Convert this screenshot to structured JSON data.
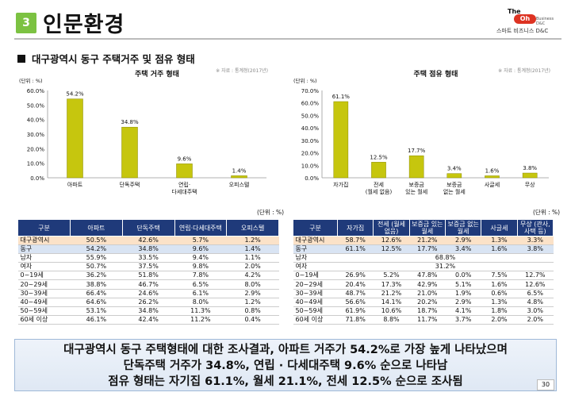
{
  "header": {
    "number": "3",
    "title": "인문환경"
  },
  "logo": {
    "line1": "The",
    "line2": "Oh",
    "line3": "Business D&C",
    "line4": "스마트 비즈니스 D&C"
  },
  "section_title": "대구광역시 동구 주택거주 및 점유 형태",
  "chart_data": [
    {
      "type": "bar",
      "title": "주택 거주 형태",
      "source": "※ 자료 : 통계청(2017년)",
      "unit_label": "(단위 : %)",
      "ylim": [
        0,
        60
      ],
      "yticks": [
        "0.0%",
        "10.0%",
        "20.0%",
        "30.0%",
        "40.0%",
        "50.0%",
        "60.0%"
      ],
      "categories": [
        "아파트",
        "단독주택",
        "연립·다세대주택",
        "오피스텔"
      ],
      "values": [
        54.2,
        34.8,
        9.6,
        1.4
      ],
      "value_labels": [
        "54.2%",
        "34.8%",
        "9.6%",
        "1.4%"
      ],
      "bar_color": "#c6c60e"
    },
    {
      "type": "bar",
      "title": "주택 점유 형태",
      "source": "※ 자료 : 통계청(2017년)",
      "unit_label": "(단위 : %)",
      "ylim": [
        0,
        70
      ],
      "yticks": [
        "0.0%",
        "10.0%",
        "20.0%",
        "30.0%",
        "40.0%",
        "50.0%",
        "60.0%",
        "70.0%"
      ],
      "categories": [
        "자가집",
        "전세 (월세 없음)",
        "보증금 있는 월세",
        "보증금 없는 월세",
        "사글세",
        "무상"
      ],
      "values": [
        61.1,
        12.5,
        17.7,
        3.4,
        1.6,
        3.8
      ],
      "value_labels": [
        "61.1%",
        "12.5%",
        "17.7%",
        "3.4%",
        "1.6%",
        "3.8%"
      ],
      "bar_color": "#c6c60e"
    }
  ],
  "table1": {
    "unit": "(단위 : %)",
    "headers": [
      "구분",
      "아파트",
      "단독주택",
      "연립·다세대주택",
      "오피스텔"
    ],
    "rows": [
      [
        "대구광역시",
        "50.5%",
        "42.6%",
        "5.7%",
        "1.2%"
      ],
      [
        "동구",
        "54.2%",
        "34.8%",
        "9.6%",
        "1.4%"
      ],
      [
        "남자",
        "55.9%",
        "33.5%",
        "9.4%",
        "1.1%"
      ],
      [
        "여자",
        "50.7%",
        "37.5%",
        "9.8%",
        "2.0%"
      ],
      [
        "0~19세",
        "36.2%",
        "51.8%",
        "7.8%",
        "4.2%"
      ],
      [
        "20~29세",
        "38.8%",
        "46.7%",
        "6.5%",
        "8.0%"
      ],
      [
        "30~39세",
        "66.4%",
        "24.6%",
        "6.1%",
        "2.9%"
      ],
      [
        "40~49세",
        "64.6%",
        "26.2%",
        "8.0%",
        "1.2%"
      ],
      [
        "50~59세",
        "53.1%",
        "34.8%",
        "11.3%",
        "0.8%"
      ],
      [
        "60세 이상",
        "46.1%",
        "42.4%",
        "11.2%",
        "0.4%"
      ]
    ]
  },
  "table2": {
    "unit": "(단위 : %)",
    "headers": [
      "구분",
      "자가집",
      "전세 (월세 없음)",
      "보증금 있는 월세",
      "보증금 없는 월세",
      "사글세",
      "무상 (관사, 사택 등)"
    ],
    "rows": [
      [
        "대구광역시",
        "58.7%",
        "12.6%",
        "21.2%",
        "2.9%",
        "1.3%",
        "3.3%"
      ],
      [
        "동구",
        "61.1%",
        "12.5%",
        "17.7%",
        "3.4%",
        "1.6%",
        "3.8%"
      ],
      [
        "남자",
        "68.8%"
      ],
      [
        "여자",
        "31.2%"
      ],
      [
        "0~19세",
        "26.9%",
        "5.2%",
        "47.8%",
        "0.0%",
        "7.5%",
        "12.7%"
      ],
      [
        "20~29세",
        "20.4%",
        "17.3%",
        "42.9%",
        "5.1%",
        "1.6%",
        "12.6%"
      ],
      [
        "30~39세",
        "48.7%",
        "21.2%",
        "21.0%",
        "1.9%",
        "0.6%",
        "6.5%"
      ],
      [
        "40~49세",
        "56.6%",
        "14.1%",
        "20.2%",
        "2.9%",
        "1.3%",
        "4.8%"
      ],
      [
        "50~59세",
        "61.9%",
        "10.6%",
        "18.7%",
        "4.1%",
        "1.8%",
        "3.0%"
      ],
      [
        "60세 이상",
        "71.8%",
        "8.8%",
        "11.7%",
        "3.7%",
        "2.0%",
        "2.0%"
      ]
    ]
  },
  "summary": {
    "line1": "대구광역시 동구 주택형태에 대한 조사결과, 아파트 거주가 54.2%로 가장 높게 나타났으며",
    "line2": "단독주택 거주가 34.8%, 연립 · 다세대주택 9.6% 순으로 나타남",
    "line3": "점유 형태는 자기집 61.1%, 월세 21.1%, 전세 12.5% 순으로 조사됨"
  },
  "page_number": "30"
}
